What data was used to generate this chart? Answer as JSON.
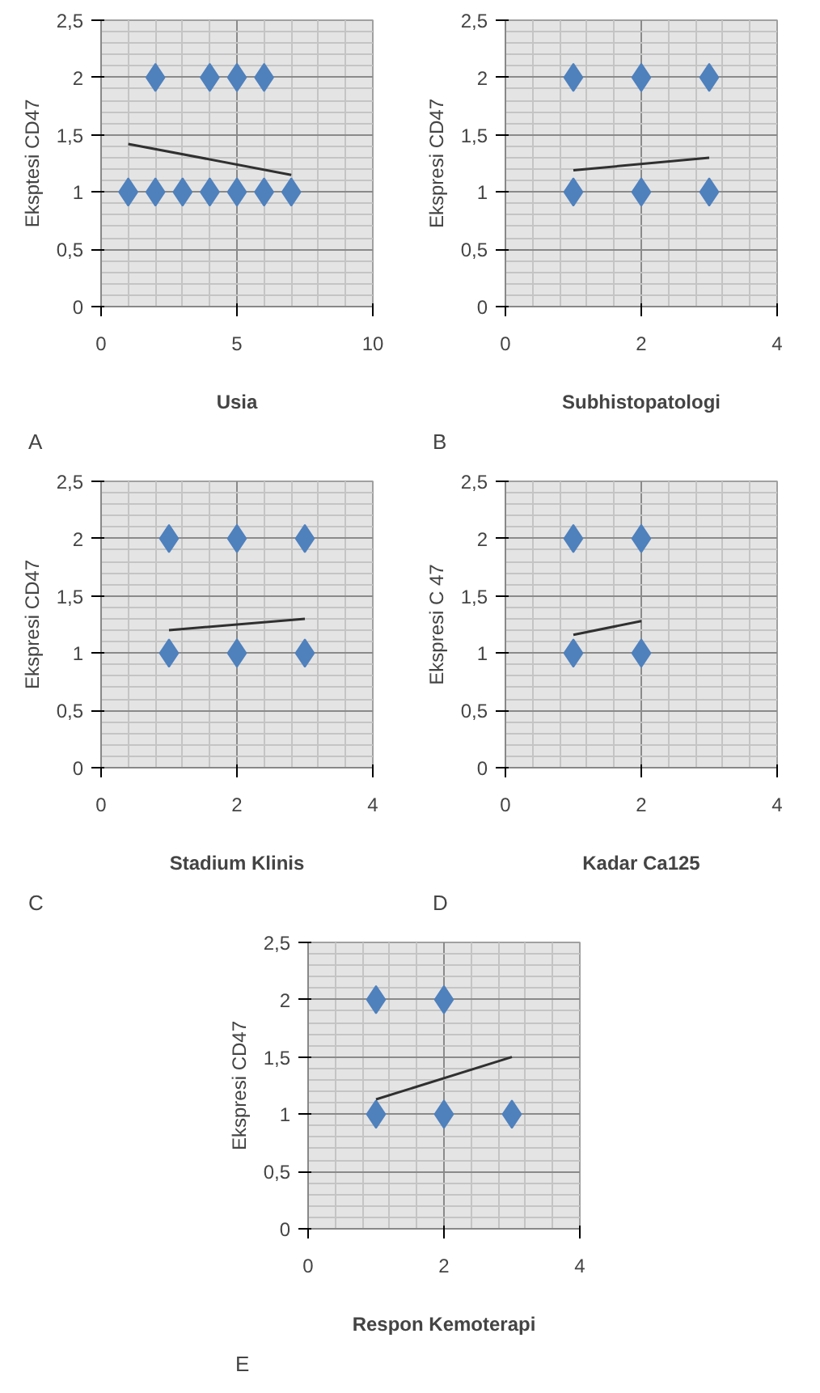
{
  "chart_data": [
    {
      "type": "scatter",
      "xlabel": "Usia",
      "ylabel": "Eksptesi CD47",
      "annotations": [
        "A"
      ],
      "xlim": [
        0,
        10
      ],
      "xticks": [
        0,
        5,
        10
      ],
      "ylim": [
        0,
        2.5
      ],
      "yticks": [
        0,
        {
          "value": 0.5,
          "label": "0,5"
        },
        1,
        {
          "value": 1.5,
          "label": "1,5"
        },
        2,
        {
          "value": 2.5,
          "label": "2,5"
        }
      ],
      "grid": true,
      "series": [
        {
          "marker": "diamond",
          "color": "#4f81bd",
          "x": [
            1,
            2,
            3,
            4,
            5,
            6,
            7,
            2,
            4,
            5,
            6
          ],
          "values": [
            1,
            1,
            1,
            1,
            1,
            1,
            1,
            2,
            2,
            2,
            2
          ]
        },
        {
          "type": "line",
          "color": "#303030",
          "x": [
            1,
            7
          ],
          "values": [
            1.42,
            1.15
          ]
        }
      ]
    },
    {
      "type": "scatter",
      "xlabel": "Subhistopatologi",
      "ylabel": "Ekspresi CD47",
      "annotations": [
        "B"
      ],
      "xlim": [
        0,
        4
      ],
      "xticks": [
        0,
        2,
        4
      ],
      "ylim": [
        0,
        2.5
      ],
      "yticks": [
        0,
        {
          "value": 0.5,
          "label": "0,5"
        },
        1,
        {
          "value": 1.5,
          "label": "1,5"
        },
        2,
        {
          "value": 2.5,
          "label": "2,5"
        }
      ],
      "grid": true,
      "series": [
        {
          "marker": "diamond",
          "color": "#4f81bd",
          "x": [
            1,
            2,
            3,
            1,
            2,
            3
          ],
          "values": [
            1,
            1,
            1,
            2,
            2,
            2
          ]
        },
        {
          "type": "line",
          "color": "#303030",
          "x": [
            1,
            3
          ],
          "values": [
            1.19,
            1.3
          ]
        }
      ]
    },
    {
      "type": "scatter",
      "xlabel": "Stadium Klinis",
      "ylabel": "Ekspresi CD47",
      "annotations": [
        "C"
      ],
      "xlim": [
        0,
        4
      ],
      "xticks": [
        0,
        2,
        4
      ],
      "ylim": [
        0,
        2.5
      ],
      "yticks": [
        0,
        {
          "value": 0.5,
          "label": "0,5"
        },
        1,
        {
          "value": 1.5,
          "label": "1,5"
        },
        2,
        {
          "value": 2.5,
          "label": "2,5"
        }
      ],
      "grid": true,
      "series": [
        {
          "marker": "diamond",
          "color": "#4f81bd",
          "x": [
            1,
            2,
            3,
            1,
            2,
            3
          ],
          "values": [
            1,
            1,
            1,
            2,
            2,
            2
          ]
        },
        {
          "type": "line",
          "color": "#303030",
          "x": [
            1,
            3
          ],
          "values": [
            1.2,
            1.3
          ]
        }
      ]
    },
    {
      "type": "scatter",
      "xlabel": "Kadar Ca125",
      "ylabel": "Ekspresi C 47",
      "annotations": [
        "D"
      ],
      "xlim": [
        0,
        4
      ],
      "xticks": [
        0,
        2,
        4
      ],
      "ylim": [
        0,
        2.5
      ],
      "yticks": [
        0,
        {
          "value": 0.5,
          "label": "0,5"
        },
        1,
        {
          "value": 1.5,
          "label": "1,5"
        },
        2,
        {
          "value": 2.5,
          "label": "2,5"
        }
      ],
      "grid": true,
      "series": [
        {
          "marker": "diamond",
          "color": "#4f81bd",
          "x": [
            1,
            2,
            1,
            2
          ],
          "values": [
            1,
            1,
            2,
            2
          ]
        },
        {
          "type": "line",
          "color": "#303030",
          "x": [
            1,
            2
          ],
          "values": [
            1.16,
            1.28
          ]
        }
      ]
    },
    {
      "type": "scatter",
      "xlabel": "Respon Kemoterapi",
      "ylabel": "Ekspresi CD47",
      "annotations": [
        "E"
      ],
      "xlim": [
        0,
        4
      ],
      "xticks": [
        0,
        2,
        4
      ],
      "ylim": [
        0,
        2.5
      ],
      "yticks": [
        0,
        {
          "value": 0.5,
          "label": "0,5"
        },
        1,
        {
          "value": 1.5,
          "label": "1,5"
        },
        2,
        {
          "value": 2.5,
          "label": "2,5"
        }
      ],
      "grid": true,
      "series": [
        {
          "marker": "diamond",
          "color": "#4f81bd",
          "x": [
            1,
            2,
            3,
            1,
            2
          ],
          "values": [
            1,
            1,
            1,
            2,
            2
          ]
        },
        {
          "type": "line",
          "color": "#303030",
          "x": [
            1,
            3
          ],
          "values": [
            1.13,
            1.5
          ]
        }
      ]
    }
  ]
}
